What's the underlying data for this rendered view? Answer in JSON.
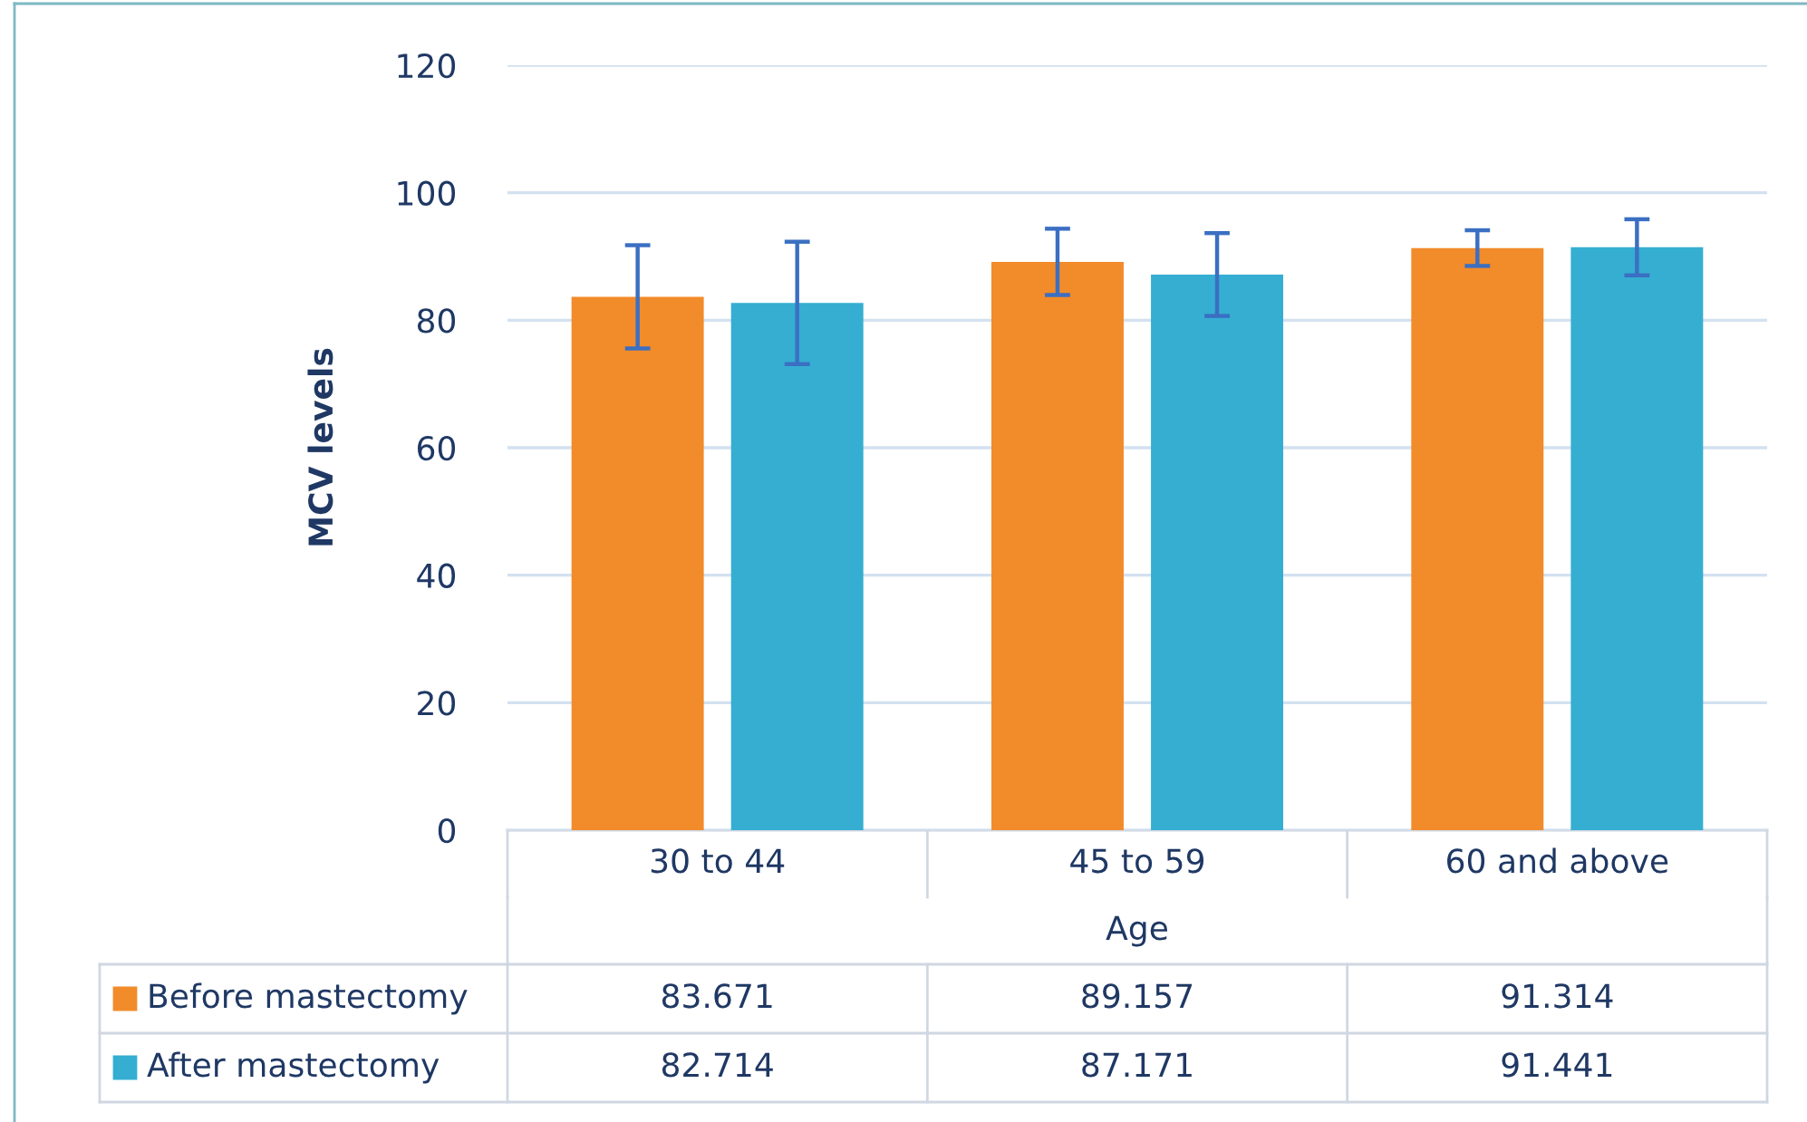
{
  "chart_data": {
    "type": "bar",
    "xlabel": "Age",
    "ylabel": "MCV levels",
    "categories": [
      "30 to 44",
      "45 to 59",
      "60 and above"
    ],
    "series": [
      {
        "name": "Before mastectomy",
        "color": "#f28b2a",
        "values": [
          83.671,
          89.157,
          91.314
        ],
        "errors": [
          8.1,
          5.2,
          2.8
        ]
      },
      {
        "name": "After mastectomy",
        "color": "#35aed2",
        "values": [
          82.714,
          87.171,
          91.441
        ],
        "errors": [
          9.6,
          6.5,
          4.4
        ]
      }
    ],
    "ylim": [
      0,
      120
    ],
    "yticks": [
      0,
      20,
      40,
      60,
      80,
      100,
      120
    ],
    "grid": "y",
    "legend": "bottom",
    "data_labels": true
  }
}
